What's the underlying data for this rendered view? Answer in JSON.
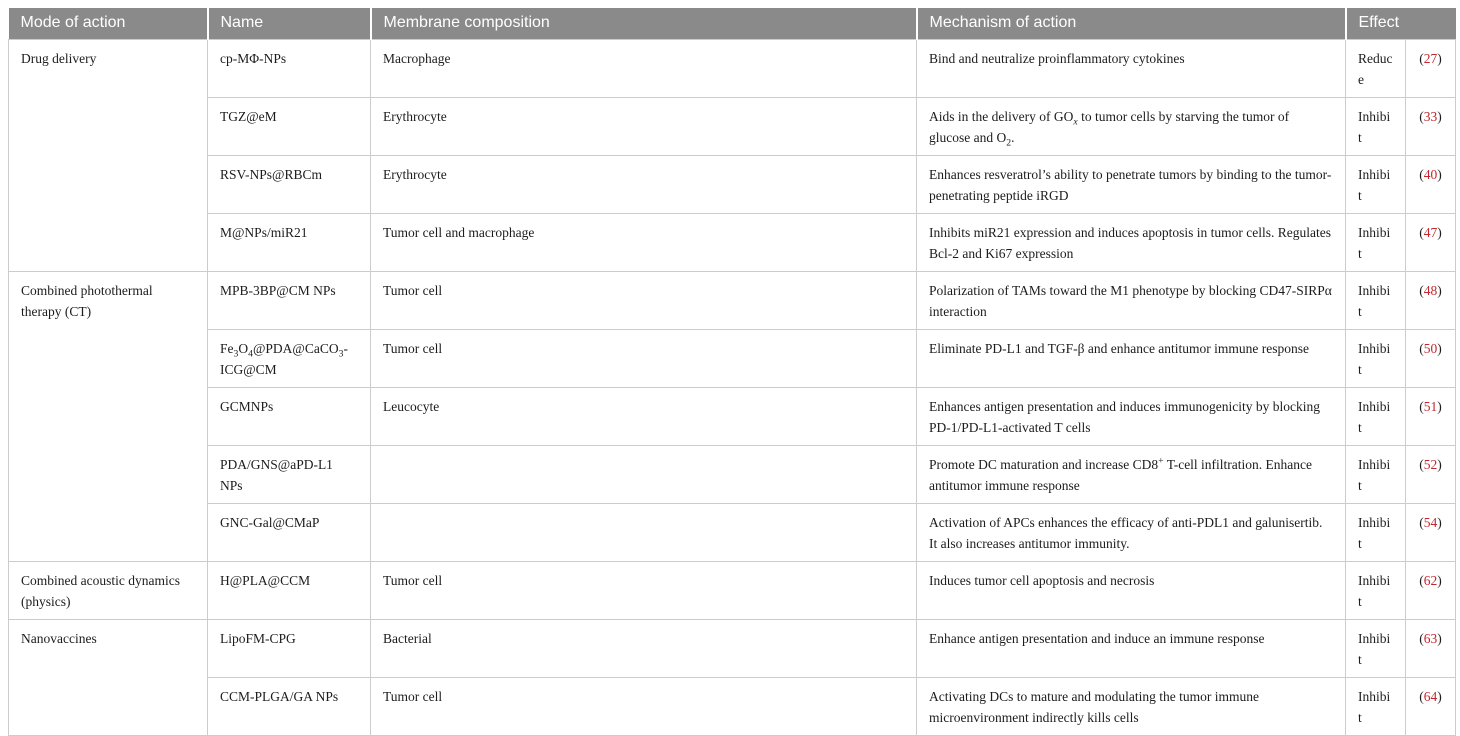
{
  "colors": {
    "header_background": "#8a8a8a",
    "header_text": "#ffffff",
    "body_text": "#1c1c1c",
    "grid_border": "#cccccc",
    "citation_red": "#c1272d"
  },
  "table": {
    "columns": [
      {
        "key": "mode",
        "label": "Mode of action"
      },
      {
        "key": "name",
        "label": "Name"
      },
      {
        "key": "membrane",
        "label": "Membrane composition"
      },
      {
        "key": "mechanism",
        "label": "Mechanism of action"
      },
      {
        "key": "effect",
        "label": "Effect"
      }
    ],
    "groups": [
      {
        "mode": "Drug delivery",
        "rows": [
          {
            "name": "cp-MΦ-NPs",
            "membrane": "Macrophage",
            "mechanism": "Bind and neutralize proinflammatory cytokines",
            "effect": "Reduce",
            "ref": "27"
          },
          {
            "name": "TGZ@eM",
            "membrane": "Erythrocyte",
            "mechanism": "Aids in the delivery of GO<sub><i>x</i></sub> to tumor cells by starving the tumor of glucose and O<sub>2</sub>.",
            "effect": "Inhibit",
            "ref": "33"
          },
          {
            "name": "RSV-NPs@RBCm",
            "membrane": "Erythrocyte",
            "mechanism": "Enhances resveratrol’s ability to penetrate tumors by binding to the tumor-penetrating peptide iRGD",
            "effect": "Inhibit",
            "ref": "40"
          },
          {
            "name": "M@NPs/miR21",
            "membrane": "Tumor cell and macrophage",
            "mechanism": "Inhibits miR21 expression and induces apoptosis in tumor cells. Regulates Bcl-2 and Ki67 expression",
            "effect": "Inhibit",
            "ref": "47"
          }
        ]
      },
      {
        "mode": "Combined photothermal therapy (CT)",
        "rows": [
          {
            "name": "MPB-3BP@CM NPs",
            "membrane": "Tumor cell",
            "mechanism": "Polarization of TAMs toward the M1 phenotype by blocking CD47-SIRPα interaction",
            "effect": "Inhibit",
            "ref": "48"
          },
          {
            "name": "Fe<sub>3</sub>O<sub>4</sub>@PDA@CaCO<sub>3</sub>-ICG@CM",
            "membrane": "Tumor cell",
            "mechanism": "Eliminate PD-L1 and TGF-β and enhance antitumor immune response",
            "effect": "Inhibit",
            "ref": "50"
          },
          {
            "name": "GCMNPs",
            "membrane": "Leucocyte",
            "mechanism": "Enhances antigen presentation and induces immunogenicity by blocking PD-1/PD-L1-activated T cells",
            "effect": "Inhibit",
            "ref": "51"
          },
          {
            "name": "PDA/GNS@aPD-L1 NPs",
            "membrane": "",
            "mechanism": "Promote DC maturation and increase CD8<sup>+</sup> T-cell infiltration. Enhance antitumor immune response",
            "effect": "Inhibit",
            "ref": "52"
          },
          {
            "name": "GNC-Gal@CMaP",
            "membrane": "",
            "mechanism": "Activation of APCs enhances the efficacy of anti-PDL1 and galunisertib. It also increases antitumor immunity.",
            "effect": "Inhibit",
            "ref": "54"
          }
        ]
      },
      {
        "mode": "Combined acoustic dynamics (physics)",
        "rows": [
          {
            "name": "H@PLA@CCM",
            "membrane": "Tumor cell",
            "mechanism": "Induces tumor cell apoptosis and necrosis",
            "effect": "Inhibit",
            "ref": "62"
          }
        ]
      },
      {
        "mode": "Nanovaccines",
        "rows": [
          {
            "name": "LipoFM-CPG",
            "membrane": "Bacterial",
            "mechanism": "Enhance antigen presentation and induce an immune response",
            "effect": "Inhibit",
            "ref": "63"
          },
          {
            "name": "CCM-PLGA/GA NPs",
            "membrane": "Tumor cell",
            "mechanism": "Activating DCs to mature and modulating the tumor immune microenvironment indirectly kills cells",
            "effect": "Inhibit",
            "ref": "64"
          }
        ]
      }
    ]
  }
}
